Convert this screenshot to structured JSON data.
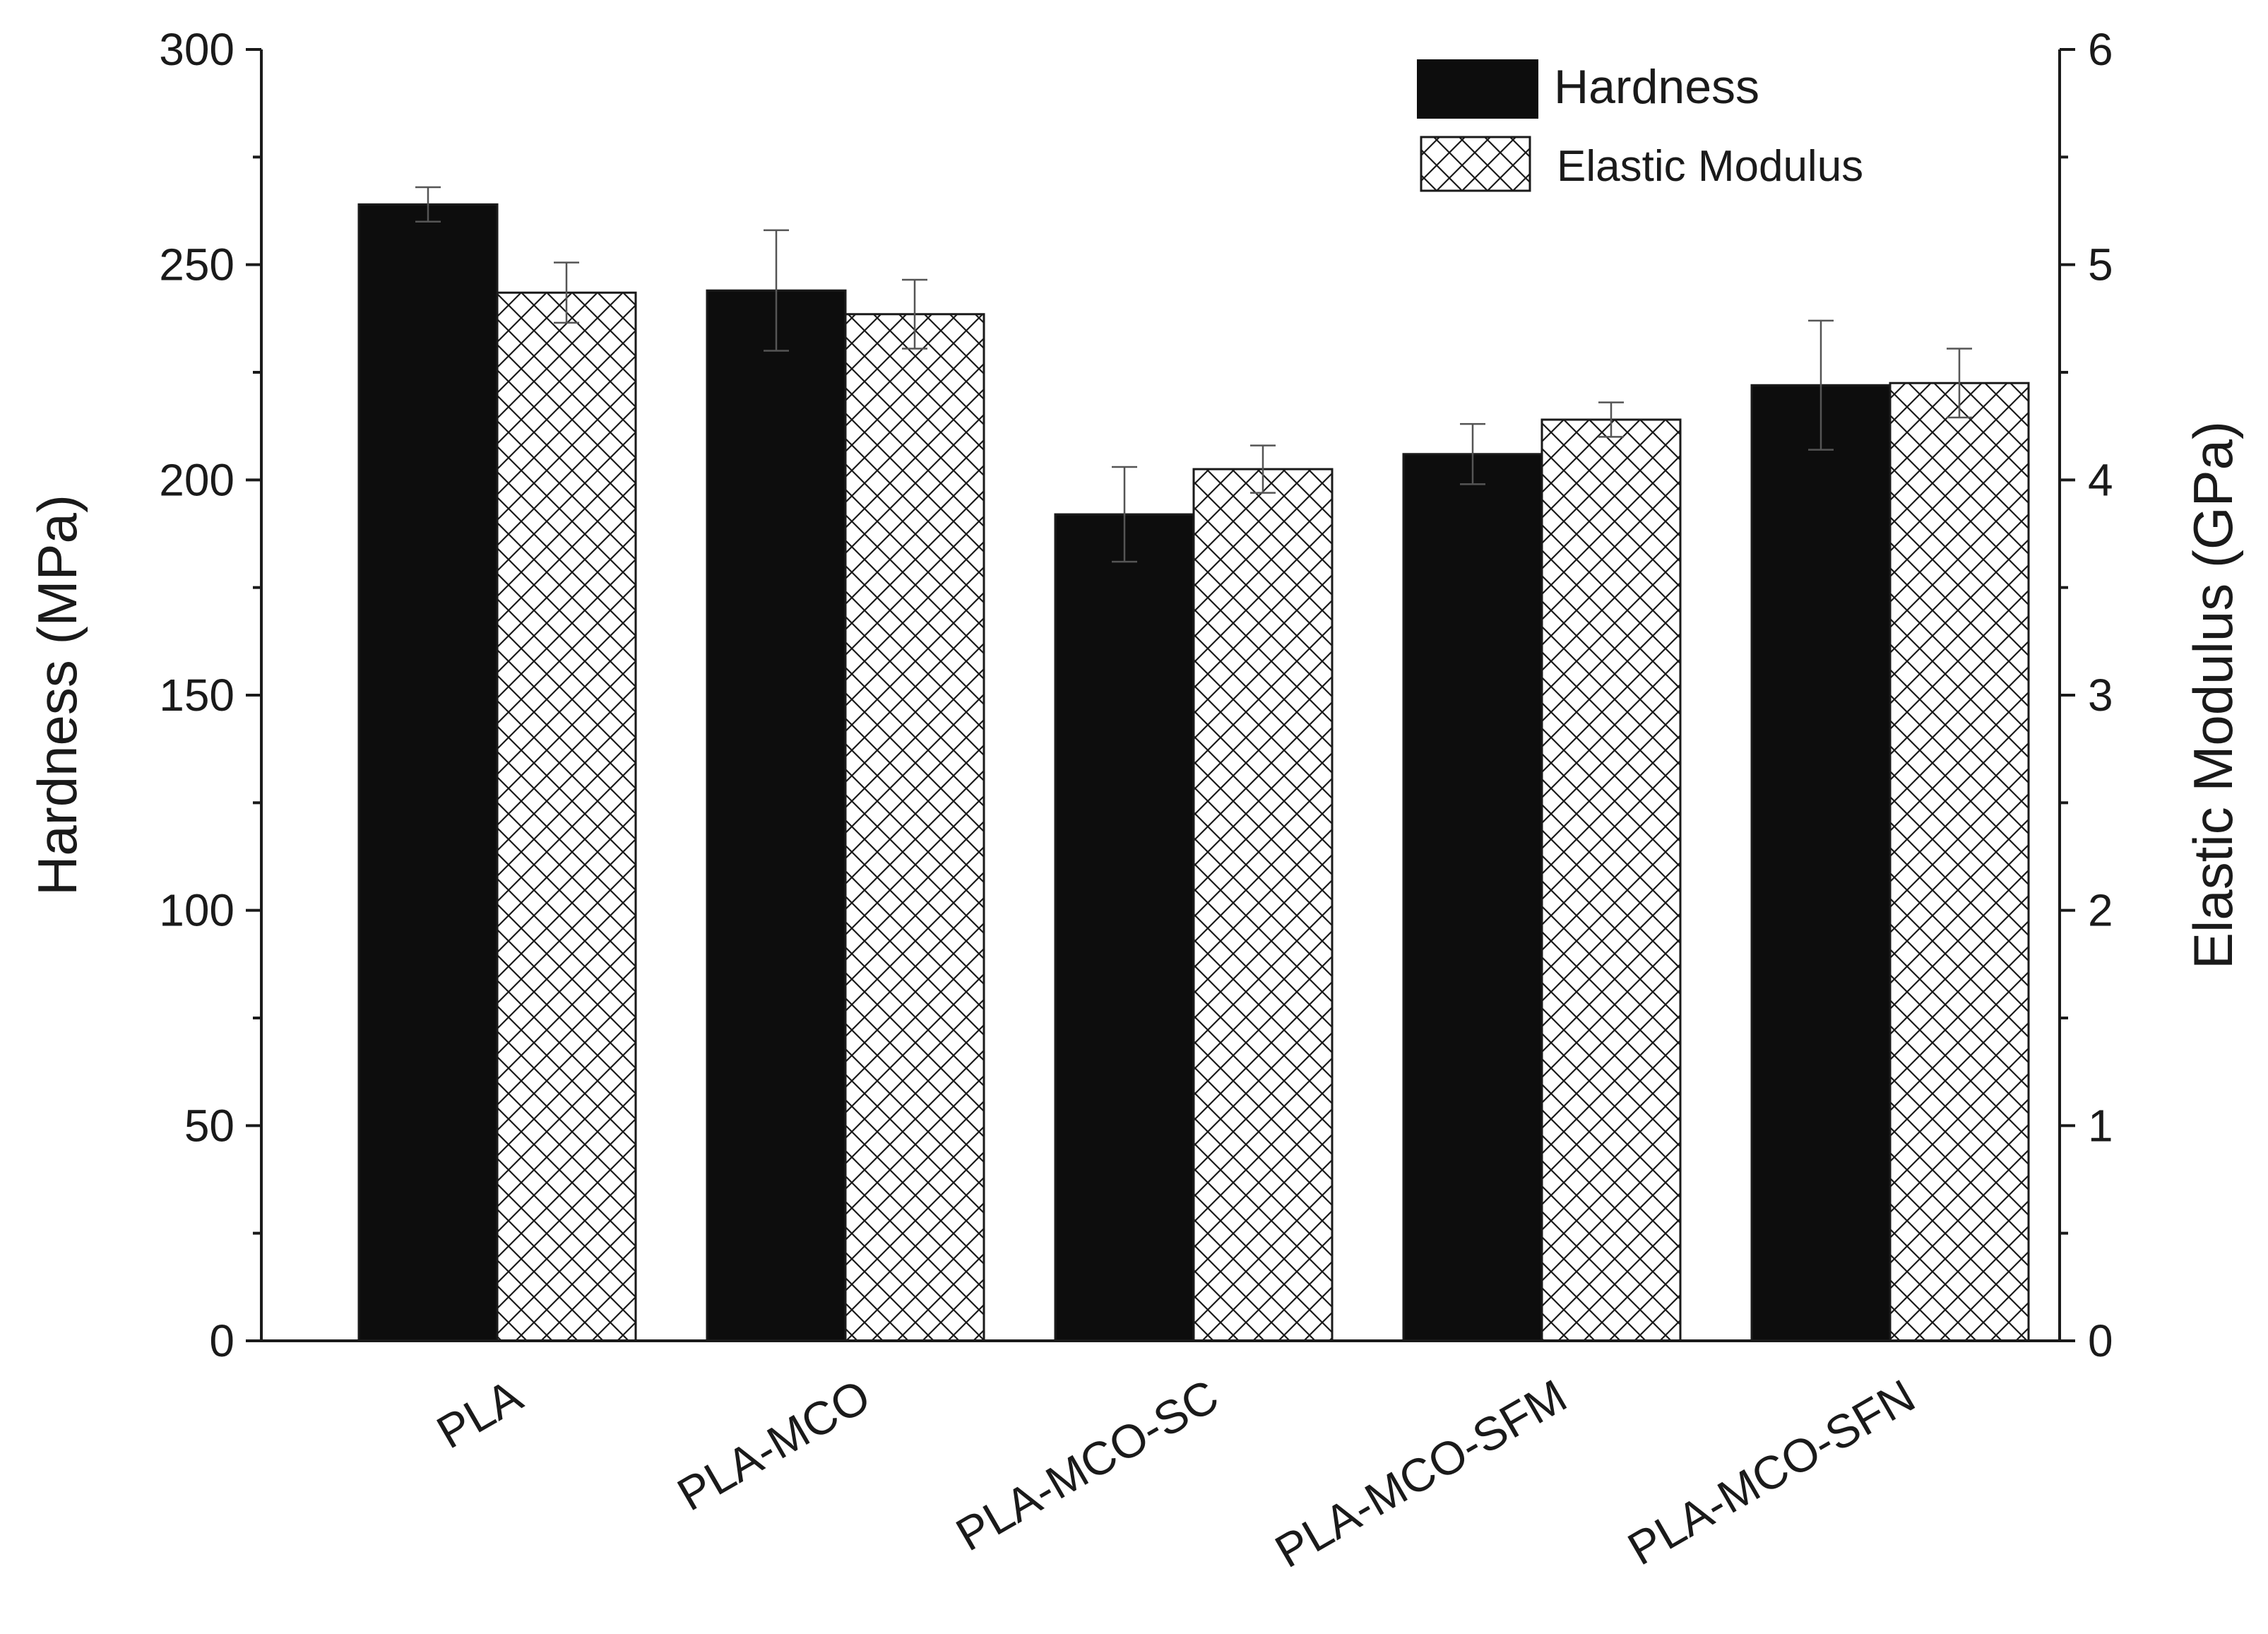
{
  "chart_data": {
    "type": "bar",
    "categories": [
      "PLA",
      "PLA-MCO",
      "PLA-MCO-SC",
      "PLA-MCO-SFM",
      "PLA-MCO-SFN"
    ],
    "series": [
      {
        "name": "Hardness",
        "axis": "left",
        "values": [
          264,
          244,
          192,
          206,
          222
        ],
        "errors": [
          4,
          14,
          11,
          7,
          15
        ],
        "fill": "#0d0d0d",
        "pattern": "solid"
      },
      {
        "name": "Elastic Modulus",
        "axis": "right",
        "values": [
          4.87,
          4.77,
          4.05,
          4.28,
          4.45
        ],
        "errors": [
          0.14,
          0.16,
          0.11,
          0.08,
          0.16
        ],
        "fill": "#ffffff",
        "pattern": "crosshatch"
      }
    ],
    "ylabel": "Hardness (MPa)",
    "y2label": "Elastic Modulus (GPa)",
    "xlabel": "",
    "ylim": [
      0,
      300
    ],
    "y2lim": [
      0,
      6
    ],
    "yticks": [
      "0",
      "50",
      "100",
      "150",
      "200",
      "250",
      "300"
    ],
    "y2ticks": [
      "0",
      "1",
      "2",
      "3",
      "4",
      "5",
      "6"
    ],
    "legend_position": "top-right",
    "grid": false,
    "xtick_rotation": "rotated ~30 degrees"
  }
}
